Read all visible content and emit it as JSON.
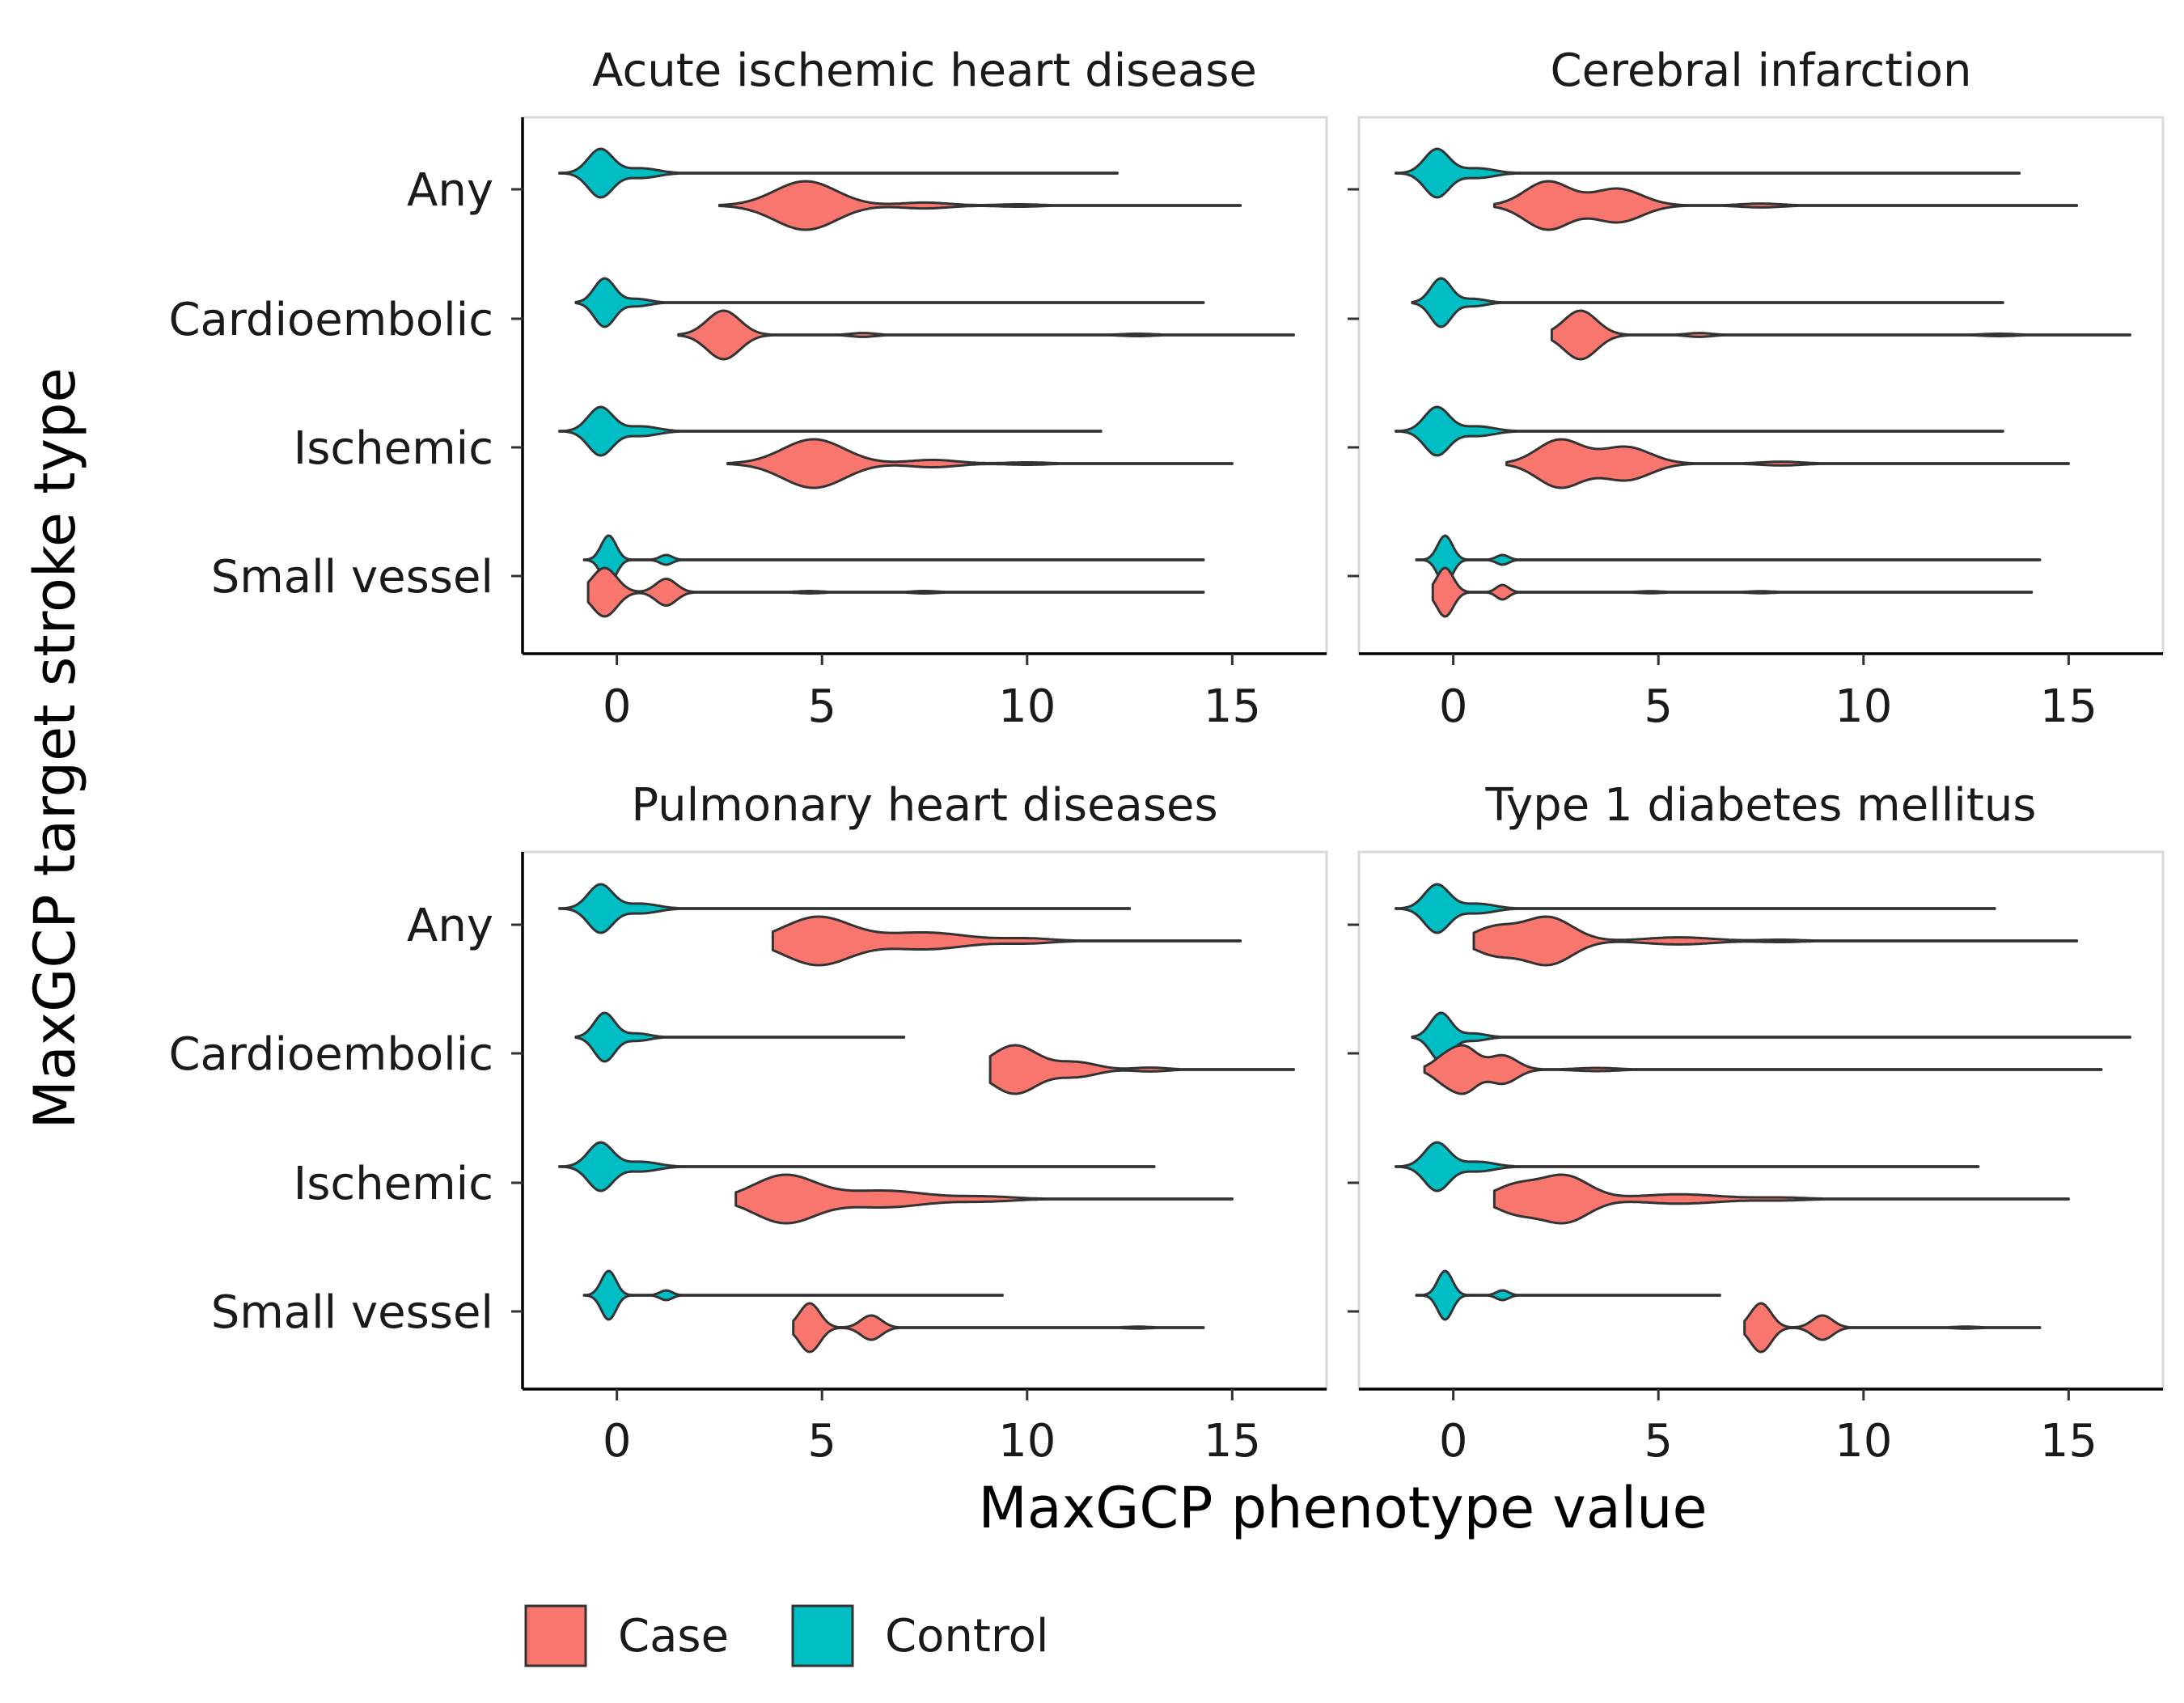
{
  "chart_data": {
    "type": "violin",
    "orientation": "horizontal",
    "xlabel": "MaxGCP phenotype value",
    "ylabel": "MaxGCP target stroke type",
    "xlim": [
      -2.3,
      17.3
    ],
    "x_ticks": [
      0,
      5,
      10,
      15
    ],
    "categories": [
      "Any",
      "Cardioembolic",
      "Ischemic",
      "Small vessel"
    ],
    "grid": false,
    "legend": {
      "position": "bottom",
      "entries": [
        {
          "label": "Case",
          "color": "#F8766D"
        },
        {
          "label": "Control",
          "color": "#00BFC4"
        }
      ]
    },
    "colors": {
      "Case": "#F8766D",
      "Control": "#00BFC4",
      "outline": "#333333"
    },
    "panels": [
      {
        "title": "Acute ischemic heart disease",
        "violins": {
          "Any": {
            "Control": {
              "min": -1.4,
              "max": 12.2,
              "modes": [
                [
                  -0.4,
                  1.0,
                  0.3
                ],
                [
                  0.6,
                  0.2,
                  0.4
                ]
              ]
            },
            "Case": {
              "min": 2.5,
              "max": 15.2,
              "modes": [
                [
                  4.6,
                  1.0,
                  0.75
                ],
                [
                  7.5,
                  0.12,
                  0.6
                ],
                [
                  9.8,
                  0.05,
                  0.5
                ]
              ]
            }
          },
          "Cardioembolic": {
            "Control": {
              "min": -1.0,
              "max": 14.3,
              "modes": [
                [
                  -0.3,
                  1.0,
                  0.25
                ],
                [
                  0.5,
                  0.15,
                  0.3
                ]
              ]
            },
            "Case": {
              "min": 1.5,
              "max": 16.5,
              "modes": [
                [
                  2.6,
                  1.0,
                  0.4
                ],
                [
                  6.0,
                  0.08,
                  0.3
                ],
                [
                  12.7,
                  0.05,
                  0.4
                ]
              ]
            }
          },
          "Ischemic": {
            "Control": {
              "min": -1.4,
              "max": 11.8,
              "modes": [
                [
                  -0.4,
                  1.0,
                  0.3
                ],
                [
                  0.6,
                  0.2,
                  0.4
                ]
              ]
            },
            "Case": {
              "min": 2.7,
              "max": 15.0,
              "modes": [
                [
                  4.8,
                  1.0,
                  0.75
                ],
                [
                  7.7,
                  0.15,
                  0.6
                ],
                [
                  10.0,
                  0.05,
                  0.5
                ]
              ]
            }
          },
          "Small vessel": {
            "Control": {
              "min": -0.8,
              "max": 14.3,
              "modes": [
                [
                  -0.2,
                  1.0,
                  0.18
                ],
                [
                  1.2,
                  0.2,
                  0.15
                ]
              ]
            },
            "Case": {
              "min": -0.7,
              "max": 14.3,
              "modes": [
                [
                  -0.3,
                  1.0,
                  0.3
                ],
                [
                  1.2,
                  0.55,
                  0.25
                ],
                [
                  4.7,
                  0.05,
                  0.3
                ],
                [
                  7.5,
                  0.05,
                  0.3
                ]
              ]
            }
          }
        }
      },
      {
        "title": "Cerebral infarction",
        "violins": {
          "Any": {
            "Control": {
              "min": -1.4,
              "max": 13.8,
              "modes": [
                [
                  -0.4,
                  1.0,
                  0.3
                ],
                [
                  0.6,
                  0.2,
                  0.4
                ]
              ]
            },
            "Case": {
              "min": 1.0,
              "max": 15.2,
              "modes": [
                [
                  2.3,
                  1.0,
                  0.55
                ],
                [
                  4.0,
                  0.7,
                  0.6
                ],
                [
                  7.5,
                  0.08,
                  0.5
                ]
              ]
            }
          },
          "Cardioembolic": {
            "Control": {
              "min": -1.0,
              "max": 13.4,
              "modes": [
                [
                  -0.3,
                  1.0,
                  0.25
                ],
                [
                  0.5,
                  0.15,
                  0.3
                ]
              ]
            },
            "Case": {
              "min": 2.4,
              "max": 16.5,
              "modes": [
                [
                  3.1,
                  1.0,
                  0.4
                ],
                [
                  6.0,
                  0.08,
                  0.3
                ],
                [
                  13.3,
                  0.05,
                  0.4
                ]
              ]
            }
          },
          "Ischemic": {
            "Control": {
              "min": -1.4,
              "max": 13.4,
              "modes": [
                [
                  -0.4,
                  1.0,
                  0.3
                ],
                [
                  0.6,
                  0.2,
                  0.4
                ]
              ]
            },
            "Case": {
              "min": 1.3,
              "max": 15.0,
              "modes": [
                [
                  2.6,
                  1.0,
                  0.55
                ],
                [
                  4.2,
                  0.7,
                  0.6
                ],
                [
                  8.0,
                  0.08,
                  0.5
                ]
              ]
            }
          },
          "Small vessel": {
            "Control": {
              "min": -0.9,
              "max": 14.3,
              "modes": [
                [
                  -0.2,
                  1.0,
                  0.18
                ],
                [
                  1.2,
                  0.2,
                  0.15
                ]
              ]
            },
            "Case": {
              "min": -0.5,
              "max": 14.1,
              "modes": [
                [
                  -0.2,
                  1.0,
                  0.2
                ],
                [
                  1.2,
                  0.3,
                  0.15
                ],
                [
                  4.8,
                  0.04,
                  0.3
                ],
                [
                  7.5,
                  0.04,
                  0.3
                ]
              ]
            }
          }
        }
      },
      {
        "title": "Pulmonary heart diseases",
        "violins": {
          "Any": {
            "Control": {
              "min": -1.4,
              "max": 12.5,
              "modes": [
                [
                  -0.4,
                  1.0,
                  0.3
                ],
                [
                  0.6,
                  0.2,
                  0.4
                ]
              ]
            },
            "Case": {
              "min": 3.8,
              "max": 15.2,
              "modes": [
                [
                  4.9,
                  1.0,
                  0.8
                ],
                [
                  7.5,
                  0.35,
                  1.0
                ],
                [
                  10.0,
                  0.1,
                  0.6
                ]
              ]
            }
          },
          "Cardioembolic": {
            "Control": {
              "min": -1.0,
              "max": 7.0,
              "modes": [
                [
                  -0.3,
                  1.0,
                  0.25
                ],
                [
                  0.5,
                  0.15,
                  0.3
                ]
              ]
            },
            "Case": {
              "min": 9.1,
              "max": 16.5,
              "modes": [
                [
                  9.7,
                  1.0,
                  0.55
                ],
                [
                  11.2,
                  0.3,
                  0.5
                ],
                [
                  13.0,
                  0.08,
                  0.4
                ]
              ]
            }
          },
          "Ischemic": {
            "Control": {
              "min": -1.4,
              "max": 13.1,
              "modes": [
                [
                  -0.4,
                  1.0,
                  0.3
                ],
                [
                  0.6,
                  0.2,
                  0.4
                ]
              ]
            },
            "Case": {
              "min": 2.9,
              "max": 15.0,
              "modes": [
                [
                  4.1,
                  1.0,
                  0.75
                ],
                [
                  6.5,
                  0.35,
                  1.0
                ],
                [
                  9.0,
                  0.1,
                  0.7
                ]
              ]
            }
          },
          "Small vessel": {
            "Control": {
              "min": -0.8,
              "max": 9.4,
              "modes": [
                [
                  -0.2,
                  1.0,
                  0.18
                ],
                [
                  1.2,
                  0.2,
                  0.15
                ]
              ]
            },
            "Case": {
              "min": 4.3,
              "max": 14.3,
              "modes": [
                [
                  4.7,
                  1.0,
                  0.25
                ],
                [
                  6.2,
                  0.5,
                  0.25
                ],
                [
                  12.7,
                  0.04,
                  0.3
                ]
              ]
            }
          }
        }
      },
      {
        "title": "Type 1 diabetes mellitus",
        "violins": {
          "Any": {
            "Control": {
              "min": -1.4,
              "max": 13.2,
              "modes": [
                [
                  -0.4,
                  1.0,
                  0.3
                ],
                [
                  0.6,
                  0.2,
                  0.4
                ]
              ]
            },
            "Case": {
              "min": 0.5,
              "max": 15.2,
              "modes": [
                [
                  2.3,
                  1.0,
                  0.6
                ],
                [
                  1.0,
                  0.55,
                  0.5
                ],
                [
                  5.5,
                  0.15,
                  0.8
                ],
                [
                  8.0,
                  0.05,
                  0.5
                ]
              ]
            }
          },
          "Cardioembolic": {
            "Control": {
              "min": -1.0,
              "max": 16.5,
              "modes": [
                [
                  -0.3,
                  1.0,
                  0.25
                ],
                [
                  0.5,
                  0.15,
                  0.3
                ]
              ]
            },
            "Case": {
              "min": -0.7,
              "max": 15.8,
              "modes": [
                [
                  0.3,
                  1.0,
                  0.3
                ],
                [
                  -0.2,
                  0.6,
                  0.3
                ],
                [
                  1.2,
                  0.7,
                  0.35
                ],
                [
                  3.5,
                  0.08,
                  0.5
                ]
              ]
            }
          },
          "Ischemic": {
            "Control": {
              "min": -1.4,
              "max": 12.8,
              "modes": [
                [
                  -0.4,
                  1.0,
                  0.3
                ],
                [
                  0.6,
                  0.2,
                  0.4
                ]
              ]
            },
            "Case": {
              "min": 1.0,
              "max": 15.0,
              "modes": [
                [
                  2.7,
                  1.0,
                  0.6
                ],
                [
                  1.5,
                  0.55,
                  0.5
                ],
                [
                  5.5,
                  0.2,
                  1.0
                ],
                [
                  8.0,
                  0.06,
                  0.6
                ]
              ]
            }
          },
          "Small vessel": {
            "Control": {
              "min": -0.9,
              "max": 6.5,
              "modes": [
                [
                  -0.2,
                  1.0,
                  0.18
                ],
                [
                  1.2,
                  0.2,
                  0.15
                ]
              ]
            },
            "Case": {
              "min": 7.1,
              "max": 14.3,
              "modes": [
                [
                  7.5,
                  1.0,
                  0.25
                ],
                [
                  9.0,
                  0.5,
                  0.25
                ],
                [
                  12.5,
                  0.04,
                  0.3
                ]
              ]
            }
          }
        }
      }
    ]
  }
}
